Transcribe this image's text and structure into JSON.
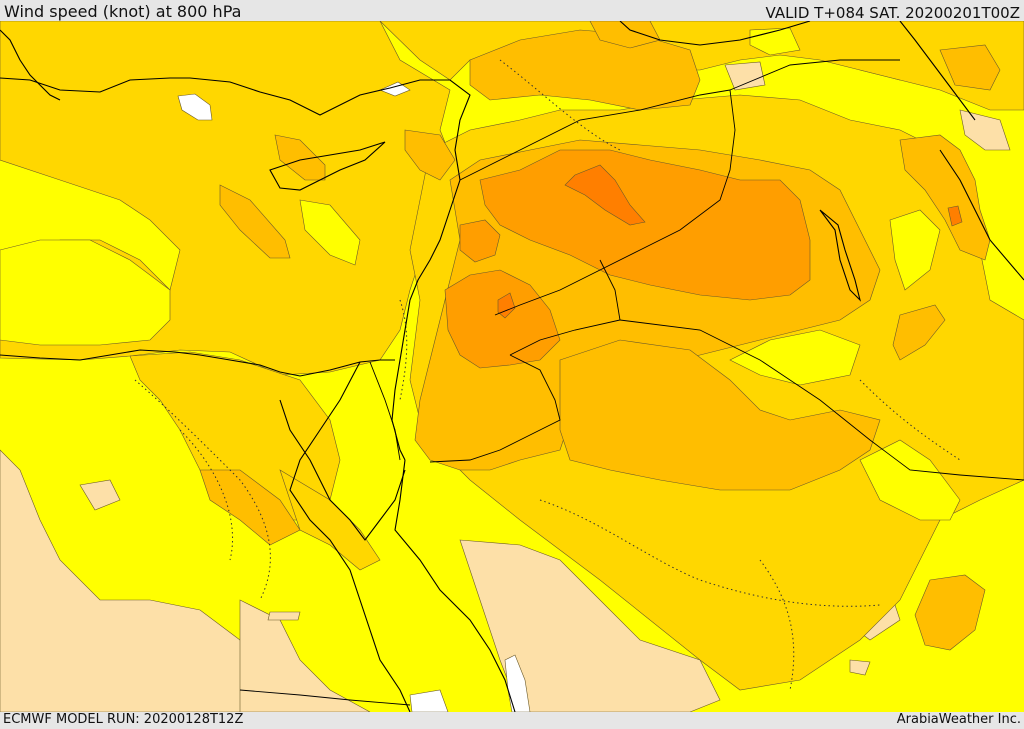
{
  "header": {
    "title": "Wind speed (knot) at 800 hPa",
    "valid": "VALID T+084 SAT. 20200201T00Z"
  },
  "footer": {
    "model_run": "ECMWF MODEL RUN: 20200128T12Z",
    "credit": "ArabiaWeather Inc."
  },
  "legend_colors": {
    "calm": "#ffffff",
    "light": "#fde0a8",
    "low": "#ffff00",
    "moderate": "#ffd700",
    "fresh": "#ffbe00",
    "strong": "#ff9e00",
    "very_strong": "#ff7f00",
    "coast_line": "#000000",
    "contour_line": "#5a4a20"
  }
}
